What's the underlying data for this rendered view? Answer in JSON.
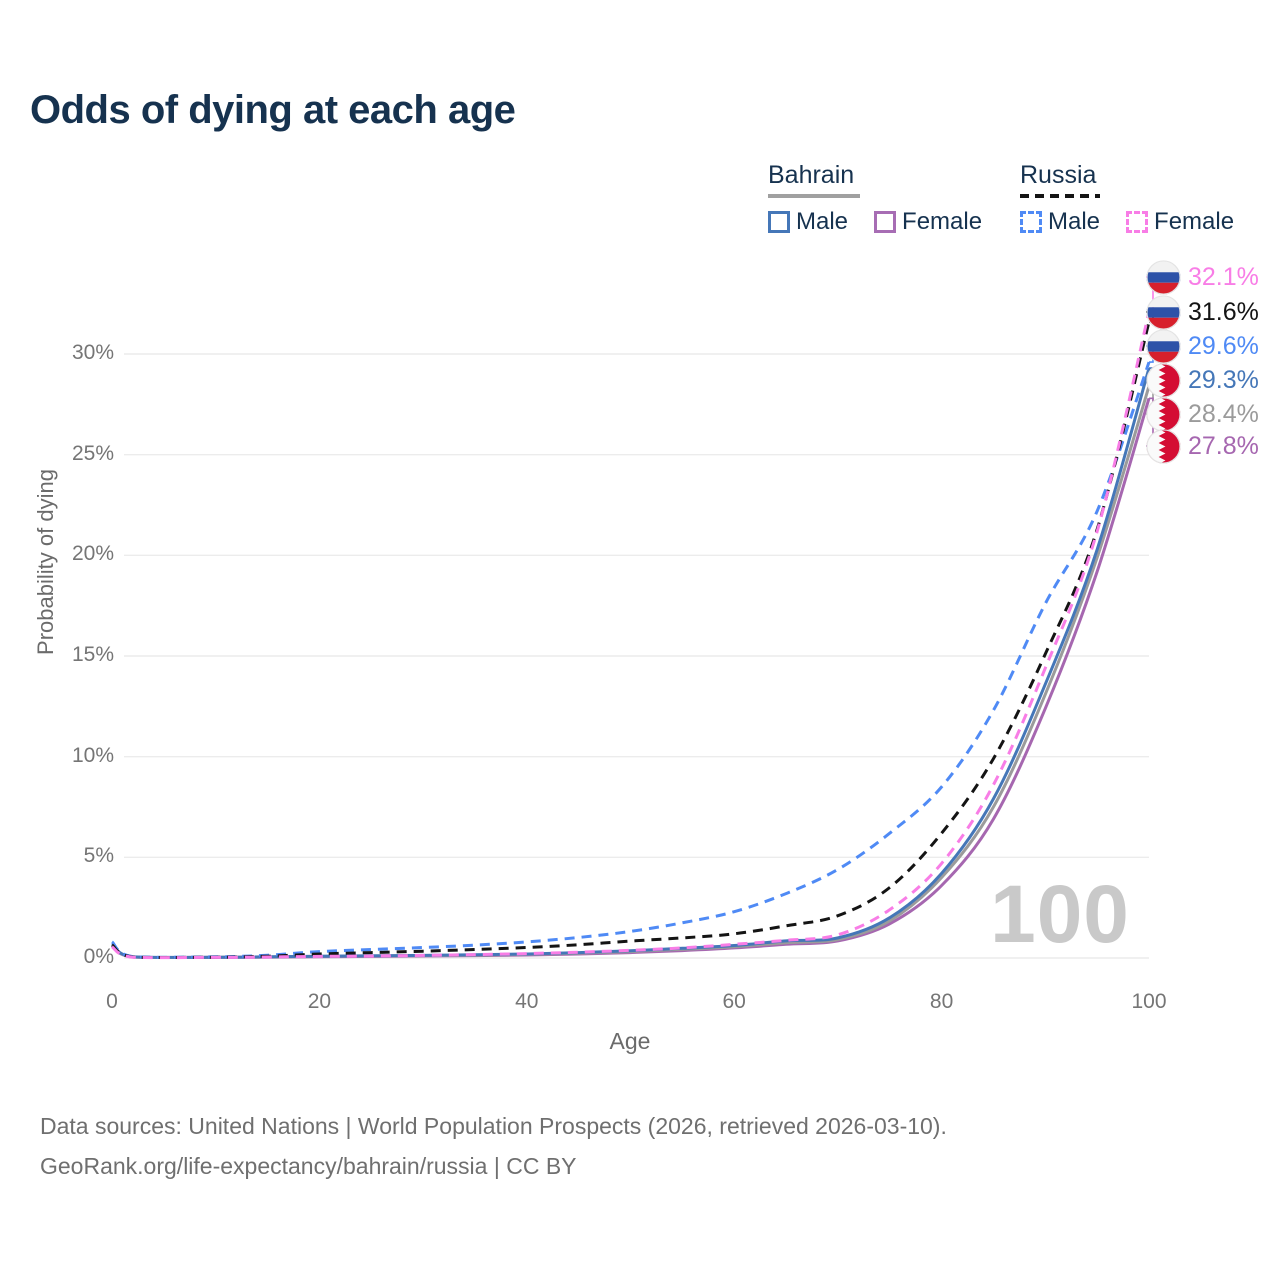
{
  "title": "Odds of dying at each age",
  "watermark": "100",
  "legend": {
    "groups": [
      {
        "country": "Bahrain",
        "line_style": "solid",
        "line_color": "#a0a0a0",
        "items": [
          {
            "label": "Male",
            "color": "#4577b8",
            "dashed": false
          },
          {
            "label": "Female",
            "color": "#a76db4",
            "dashed": false
          }
        ]
      },
      {
        "country": "Russia",
        "line_style": "dashed",
        "line_color": "#141414",
        "items": [
          {
            "label": "Male",
            "color": "#4f8af5",
            "dashed": true
          },
          {
            "label": "Female",
            "color": "#f87de6",
            "dashed": true
          }
        ]
      }
    ]
  },
  "chart_data": {
    "type": "line",
    "title": "Odds of dying at each age",
    "xlabel": "Age",
    "ylabel": "Probability of dying",
    "xlim": [
      0,
      100
    ],
    "ylim": [
      0,
      33
    ],
    "grid": true,
    "legend_position": "top-right",
    "x_ticks": [
      {
        "label": "0",
        "value": 0
      },
      {
        "label": "20",
        "value": 20
      },
      {
        "label": "40",
        "value": 40
      },
      {
        "label": "60",
        "value": 60
      },
      {
        "label": "80",
        "value": 80
      },
      {
        "label": "100",
        "value": 100
      }
    ],
    "y_ticks": [
      {
        "label": "0%",
        "value": 0
      },
      {
        "label": "5%",
        "value": 5
      },
      {
        "label": "10%",
        "value": 10
      },
      {
        "label": "15%",
        "value": 15
      },
      {
        "label": "20%",
        "value": 20
      },
      {
        "label": "25%",
        "value": 25
      },
      {
        "label": "30%",
        "value": 30
      }
    ],
    "series": [
      {
        "name": "Russia Female",
        "country": "Russia",
        "sex": "Female",
        "color": "#f87de6",
        "dashed": true,
        "flag": "ru",
        "end_label": "32.1%",
        "end_value": 32.1,
        "points": [
          [
            0,
            0.55
          ],
          [
            2,
            0.04
          ],
          [
            10,
            0.03
          ],
          [
            15,
            0.05
          ],
          [
            20,
            0.08
          ],
          [
            25,
            0.1
          ],
          [
            30,
            0.13
          ],
          [
            35,
            0.17
          ],
          [
            40,
            0.22
          ],
          [
            45,
            0.29
          ],
          [
            50,
            0.38
          ],
          [
            55,
            0.5
          ],
          [
            60,
            0.68
          ],
          [
            65,
            0.88
          ],
          [
            70,
            1.15
          ],
          [
            75,
            2.4
          ],
          [
            80,
            4.7
          ],
          [
            85,
            8.6
          ],
          [
            90,
            14.4
          ],
          [
            95,
            21.2
          ],
          [
            100,
            32.1
          ]
        ]
      },
      {
        "name": "Russia Both sexes",
        "country": "Russia",
        "sex": "Both",
        "color": "#141414",
        "dashed": true,
        "flag": "ru",
        "end_label": "31.6%",
        "end_value": 31.6,
        "points": [
          [
            0,
            0.65
          ],
          [
            2,
            0.05
          ],
          [
            10,
            0.04
          ],
          [
            15,
            0.09
          ],
          [
            20,
            0.2
          ],
          [
            25,
            0.27
          ],
          [
            30,
            0.34
          ],
          [
            35,
            0.42
          ],
          [
            40,
            0.52
          ],
          [
            45,
            0.66
          ],
          [
            50,
            0.84
          ],
          [
            55,
            1.0
          ],
          [
            60,
            1.2
          ],
          [
            65,
            1.6
          ],
          [
            70,
            2.1
          ],
          [
            75,
            3.5
          ],
          [
            80,
            6.2
          ],
          [
            85,
            9.9
          ],
          [
            90,
            15.1
          ],
          [
            95,
            21.3
          ],
          [
            100,
            31.6
          ]
        ]
      },
      {
        "name": "Russia Male",
        "country": "Russia",
        "sex": "Male",
        "color": "#4f8af5",
        "dashed": true,
        "flag": "ru",
        "end_label": "29.6%",
        "end_value": 29.6,
        "points": [
          [
            0,
            0.8
          ],
          [
            2,
            0.07
          ],
          [
            10,
            0.06
          ],
          [
            15,
            0.14
          ],
          [
            20,
            0.32
          ],
          [
            25,
            0.42
          ],
          [
            30,
            0.52
          ],
          [
            35,
            0.64
          ],
          [
            40,
            0.8
          ],
          [
            45,
            1.02
          ],
          [
            50,
            1.32
          ],
          [
            55,
            1.75
          ],
          [
            60,
            2.3
          ],
          [
            65,
            3.2
          ],
          [
            70,
            4.4
          ],
          [
            75,
            6.2
          ],
          [
            80,
            8.5
          ],
          [
            85,
            12.3
          ],
          [
            90,
            17.6
          ],
          [
            95,
            22.2
          ],
          [
            100,
            29.6
          ]
        ]
      },
      {
        "name": "Bahrain Male",
        "country": "Bahrain",
        "sex": "Male",
        "color": "#4577b8",
        "dashed": false,
        "flag": "bh",
        "end_label": "29.3%",
        "end_value": 29.3,
        "points": [
          [
            0,
            0.7
          ],
          [
            2,
            0.06
          ],
          [
            10,
            0.04
          ],
          [
            15,
            0.06
          ],
          [
            20,
            0.09
          ],
          [
            25,
            0.11
          ],
          [
            30,
            0.13
          ],
          [
            35,
            0.16
          ],
          [
            40,
            0.2
          ],
          [
            45,
            0.27
          ],
          [
            50,
            0.36
          ],
          [
            55,
            0.48
          ],
          [
            60,
            0.62
          ],
          [
            65,
            0.85
          ],
          [
            70,
            1.0
          ],
          [
            75,
            2.0
          ],
          [
            80,
            4.2
          ],
          [
            85,
            7.9
          ],
          [
            90,
            13.6
          ],
          [
            95,
            20.3
          ],
          [
            100,
            29.3
          ]
        ]
      },
      {
        "name": "Bahrain Both sexes",
        "country": "Bahrain",
        "sex": "Both",
        "color": "#9b9b9b",
        "dashed": false,
        "flag": "bh",
        "end_label": "28.4%",
        "end_value": 28.4,
        "points": [
          [
            0,
            0.65
          ],
          [
            2,
            0.05
          ],
          [
            10,
            0.035
          ],
          [
            15,
            0.05
          ],
          [
            20,
            0.08
          ],
          [
            25,
            0.1
          ],
          [
            30,
            0.12
          ],
          [
            35,
            0.14
          ],
          [
            40,
            0.18
          ],
          [
            45,
            0.24
          ],
          [
            50,
            0.32
          ],
          [
            55,
            0.43
          ],
          [
            60,
            0.56
          ],
          [
            65,
            0.76
          ],
          [
            70,
            0.92
          ],
          [
            75,
            1.85
          ],
          [
            80,
            4.0
          ],
          [
            85,
            7.5
          ],
          [
            90,
            13.1
          ],
          [
            95,
            19.9
          ],
          [
            100,
            28.4
          ]
        ]
      },
      {
        "name": "Bahrain Female",
        "country": "Bahrain",
        "sex": "Female",
        "color": "#a667b0",
        "dashed": false,
        "flag": "bh",
        "end_label": "27.8%",
        "end_value": 27.8,
        "points": [
          [
            0,
            0.6
          ],
          [
            2,
            0.05
          ],
          [
            10,
            0.03
          ],
          [
            15,
            0.04
          ],
          [
            20,
            0.06
          ],
          [
            25,
            0.08
          ],
          [
            30,
            0.1
          ],
          [
            35,
            0.12
          ],
          [
            40,
            0.15
          ],
          [
            45,
            0.2
          ],
          [
            50,
            0.27
          ],
          [
            55,
            0.37
          ],
          [
            60,
            0.5
          ],
          [
            65,
            0.68
          ],
          [
            70,
            0.85
          ],
          [
            75,
            1.7
          ],
          [
            80,
            3.6
          ],
          [
            85,
            6.9
          ],
          [
            90,
            12.4
          ],
          [
            95,
            19.2
          ],
          [
            100,
            27.8
          ]
        ]
      }
    ]
  },
  "footer": {
    "line1": "Data sources: United Nations | World Population Prospects (2026, retrieved 2026-03-10).",
    "line2": "GeoRank.org/life-expectancy/bahrain/russia | CC BY"
  }
}
